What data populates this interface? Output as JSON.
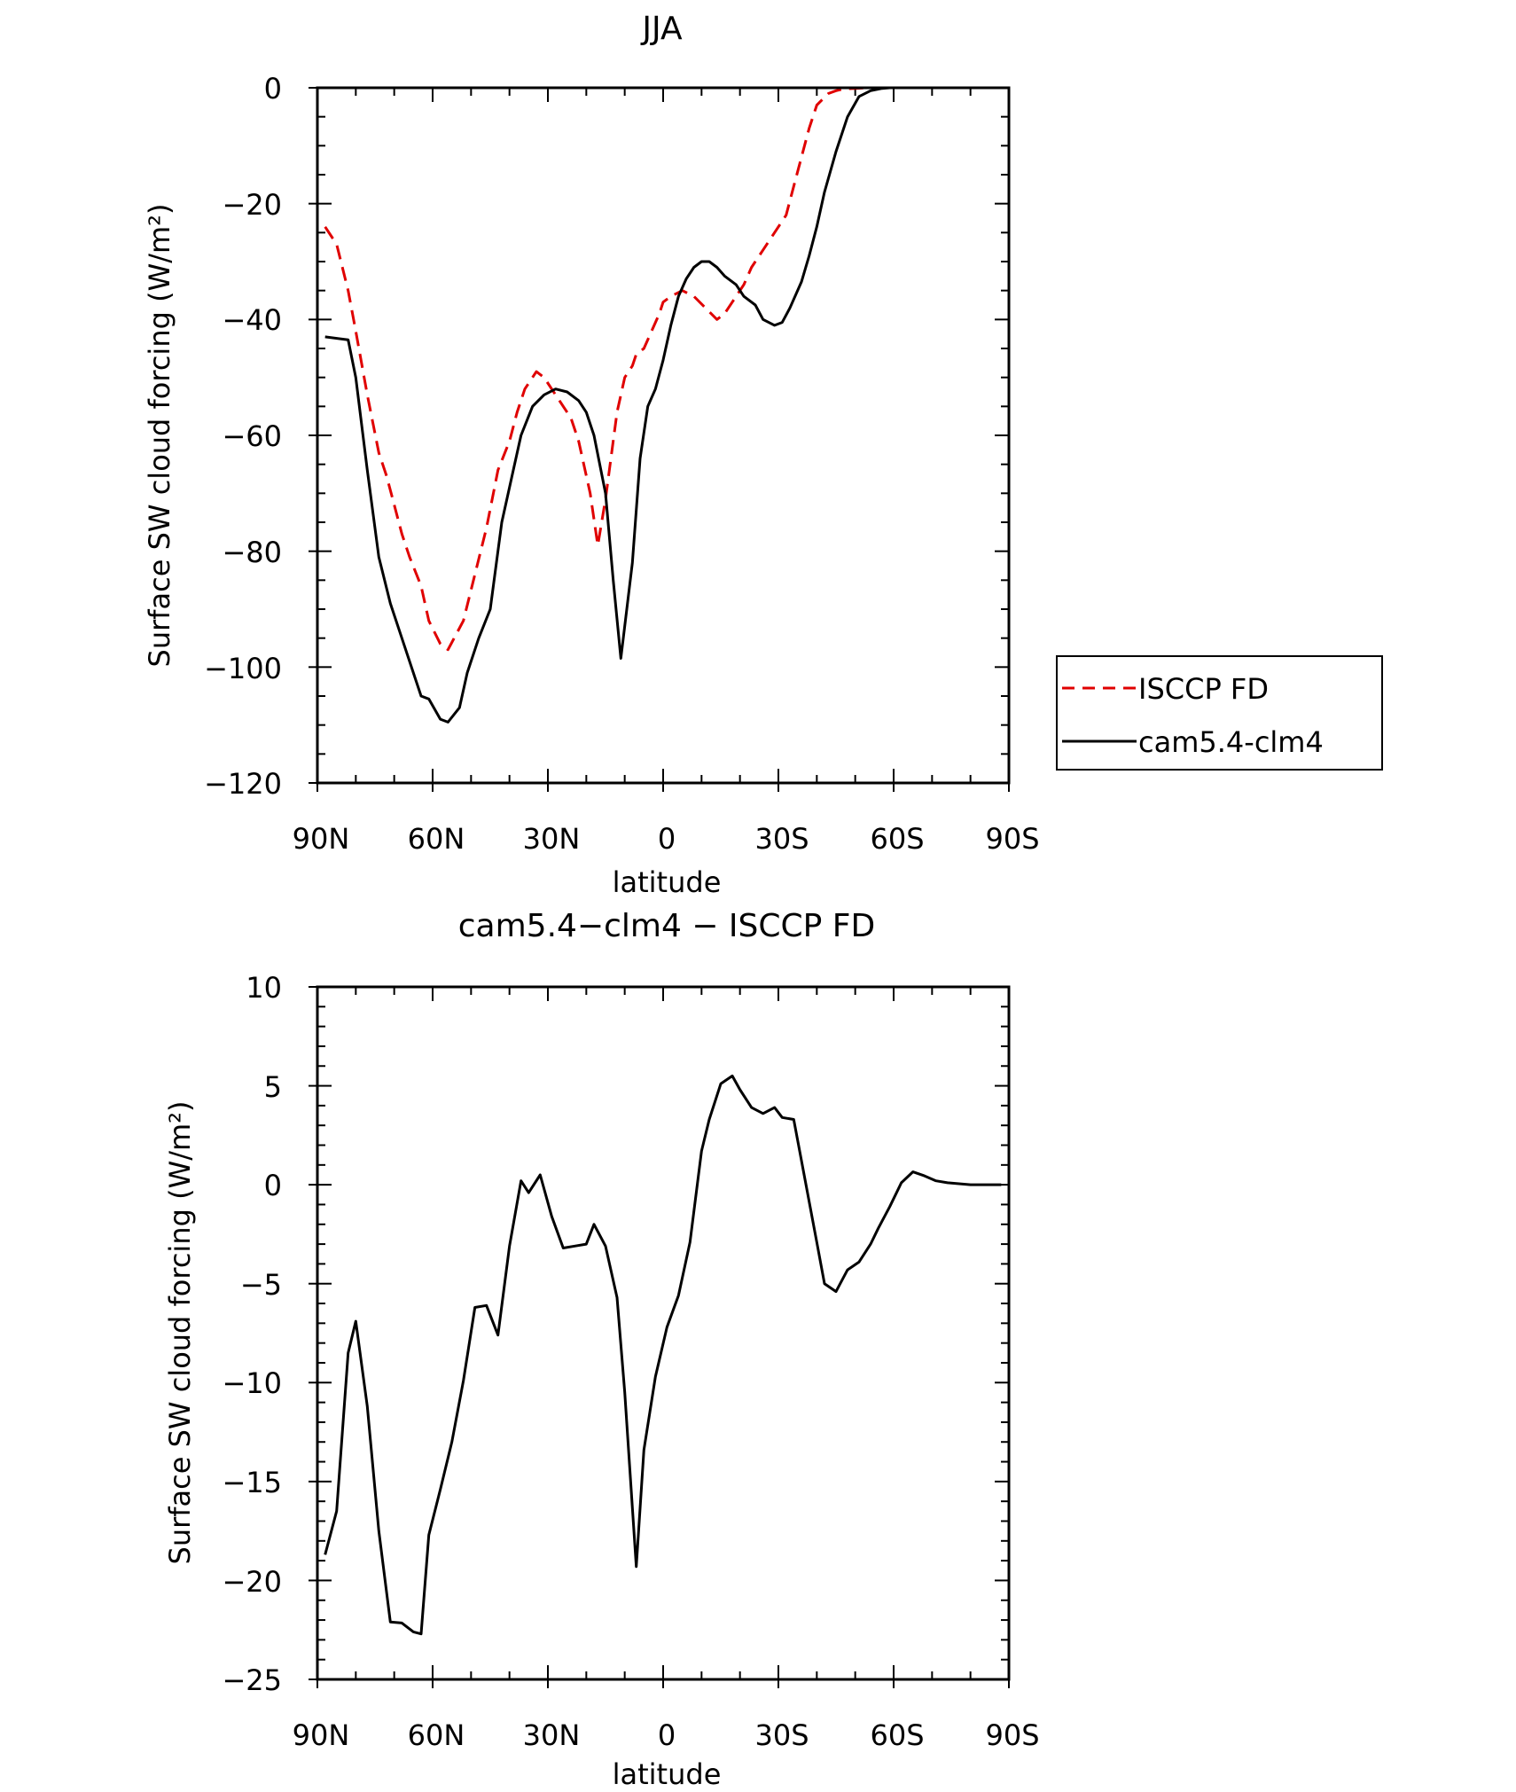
{
  "chart_data": [
    {
      "type": "line",
      "title": "JJA",
      "xlabel": "latitude",
      "ylabel": "Surface SW cloud forcing (W/m²)",
      "x_axis": "latitude, 90 (North) to -90 (South)",
      "xlim": [
        90,
        -90
      ],
      "ylim": [
        -120,
        0
      ],
      "x_ticks": [
        {
          "value": 90,
          "label": "90N"
        },
        {
          "value": 60,
          "label": "60N"
        },
        {
          "value": 30,
          "label": "30N"
        },
        {
          "value": 0,
          "label": "0"
        },
        {
          "value": -30,
          "label": "30S"
        },
        {
          "value": -60,
          "label": "60S"
        },
        {
          "value": -90,
          "label": "90S"
        }
      ],
      "y_ticks": [
        0,
        -20,
        -40,
        -60,
        -80,
        -100,
        -120
      ],
      "y_tick_labels": [
        "0",
        "−20",
        "−40",
        "−60",
        "−80",
        "−100",
        "−120"
      ],
      "grid": false,
      "legend_position": "right",
      "series": [
        {
          "name": "ISCCP FD",
          "color": "#e00000",
          "dash": "dashed",
          "x": [
            88,
            85,
            82,
            80,
            77,
            74,
            72,
            70,
            68,
            66,
            63,
            61,
            58,
            56,
            52,
            49,
            46,
            43,
            40,
            38,
            36,
            33,
            31,
            29,
            26,
            24,
            22,
            19,
            17,
            15,
            12,
            10,
            8,
            7,
            5,
            3,
            1,
            0,
            -2,
            -5,
            -8,
            -11,
            -14,
            -16,
            -18,
            -21,
            -23,
            -26,
            -29,
            -32,
            -34,
            -36,
            -38,
            -40,
            -43,
            -45,
            -47,
            -50,
            -53,
            -56,
            -58,
            -60,
            -62,
            -64,
            -66,
            -68,
            -70,
            -73,
            -76,
            -79,
            -82,
            -85,
            -88
          ],
          "y": [
            -24,
            -27,
            -35,
            -42,
            -53,
            -63,
            -67,
            -72,
            -77,
            -81,
            -86,
            -92,
            -96,
            -97,
            -92,
            -84,
            -76,
            -66,
            -61,
            -56,
            -52,
            -49,
            -50,
            -52,
            -55,
            -57,
            -61,
            -70,
            -79,
            -71,
            -56,
            -50,
            -48,
            -46,
            -45,
            -42,
            -39,
            -37,
            -36,
            -35,
            -36,
            -38,
            -40,
            -39,
            -37,
            -34,
            -31,
            -28,
            -25,
            -22,
            -17,
            -12,
            -7,
            -3,
            -1,
            -0.5,
            -0.2,
            -0.1,
            0,
            0,
            0,
            0,
            0,
            0,
            0,
            0,
            0,
            0,
            0,
            0,
            0,
            0,
            0
          ]
        },
        {
          "name": "cam5.4-clm4",
          "color": "#000000",
          "dash": "solid",
          "x": [
            88,
            82,
            80,
            77,
            74,
            71,
            68,
            65,
            63,
            61,
            58,
            56,
            53,
            51,
            48,
            45,
            42,
            39,
            37,
            34,
            31,
            28,
            25,
            22,
            20,
            18,
            15,
            13,
            11,
            8,
            6,
            4,
            2,
            0,
            -2,
            -4,
            -6,
            -8,
            -10,
            -12,
            -14,
            -16,
            -19,
            -21,
            -24,
            -26,
            -29,
            -31,
            -33,
            -36,
            -38,
            -40,
            -42,
            -45,
            -48,
            -51,
            -54,
            -57,
            -59,
            -62,
            -64,
            -66,
            -68,
            -70,
            -73,
            -76,
            -80,
            -84,
            -88
          ],
          "y": [
            -43,
            -43.5,
            -50,
            -66,
            -81,
            -89,
            -95,
            -101,
            -105,
            -105.5,
            -109,
            -109.5,
            -107,
            -101,
            -95,
            -90,
            -75,
            -66,
            -60,
            -55,
            -53,
            -52,
            -52.5,
            -54,
            -56,
            -60,
            -70,
            -85,
            -98.5,
            -82,
            -64,
            -55,
            -52,
            -47,
            -41,
            -36,
            -33,
            -31,
            -30,
            -30,
            -31,
            -32.5,
            -34,
            -36,
            -37.5,
            -40,
            -41,
            -40.5,
            -38,
            -33.5,
            -29,
            -24,
            -18,
            -11,
            -5,
            -1.5,
            -0.5,
            -0.1,
            0,
            0,
            0,
            0,
            0,
            0,
            0,
            0,
            0,
            0,
            0
          ]
        }
      ]
    },
    {
      "type": "line",
      "title": "cam5.4−clm4 − ISCCP FD",
      "xlabel": "latitude",
      "ylabel": "Surface SW cloud forcing (W/m²)",
      "x_axis": "latitude, 90 (North) to -90 (South)",
      "xlim": [
        90,
        -90
      ],
      "ylim": [
        -25,
        10
      ],
      "x_ticks": [
        {
          "value": 90,
          "label": "90N"
        },
        {
          "value": 60,
          "label": "60N"
        },
        {
          "value": 30,
          "label": "30N"
        },
        {
          "value": 0,
          "label": "0"
        },
        {
          "value": -30,
          "label": "30S"
        },
        {
          "value": -60,
          "label": "60S"
        },
        {
          "value": -90,
          "label": "90S"
        }
      ],
      "y_ticks": [
        10,
        5,
        0,
        -5,
        -10,
        -15,
        -20,
        -25
      ],
      "y_tick_labels": [
        "10",
        "5",
        "0",
        "−5",
        "−10",
        "−15",
        "−20",
        "−25"
      ],
      "grid": false,
      "series": [
        {
          "color": "#000000",
          "dash": "solid",
          "x": [
            88,
            85,
            82,
            80,
            77,
            74,
            71,
            68,
            65,
            63,
            61,
            58,
            55,
            52,
            49,
            46,
            43,
            40,
            37,
            35,
            32,
            29,
            26,
            23,
            20,
            18,
            15,
            12,
            10,
            7,
            5,
            2,
            -1,
            -4,
            -7,
            -10,
            -12,
            -15,
            -18,
            -20,
            -23,
            -26,
            -29,
            -31,
            -34,
            -37,
            -40,
            -42,
            -45,
            -48,
            -51,
            -54,
            -56,
            -59,
            -62,
            -65,
            -68,
            -71,
            -74,
            -77,
            -80,
            -84,
            -88
          ],
          "y": [
            -18.7,
            -16.5,
            -8.5,
            -6.9,
            -11.2,
            -17.5,
            -22.1,
            -22.15,
            -22.6,
            -22.7,
            -17.7,
            -15.4,
            -13,
            -9.9,
            -6.2,
            -6.1,
            -7.6,
            -3.1,
            0.2,
            -0.4,
            0.5,
            -1.6,
            -3.2,
            -3.1,
            -3,
            -2,
            -3.1,
            -5.7,
            -10.5,
            -19.3,
            -13.4,
            -9.7,
            -7.2,
            -5.6,
            -2.9,
            1.7,
            3.3,
            5.1,
            5.5,
            4.8,
            3.9,
            3.6,
            3.9,
            3.4,
            3.3,
            0.2,
            -2.9,
            -5,
            -5.4,
            -4.3,
            -3.9,
            -3,
            -2.2,
            -1.1,
            0.1,
            0.65,
            0.45,
            0.2,
            0.1,
            0.05,
            0,
            0,
            0
          ]
        }
      ]
    }
  ]
}
